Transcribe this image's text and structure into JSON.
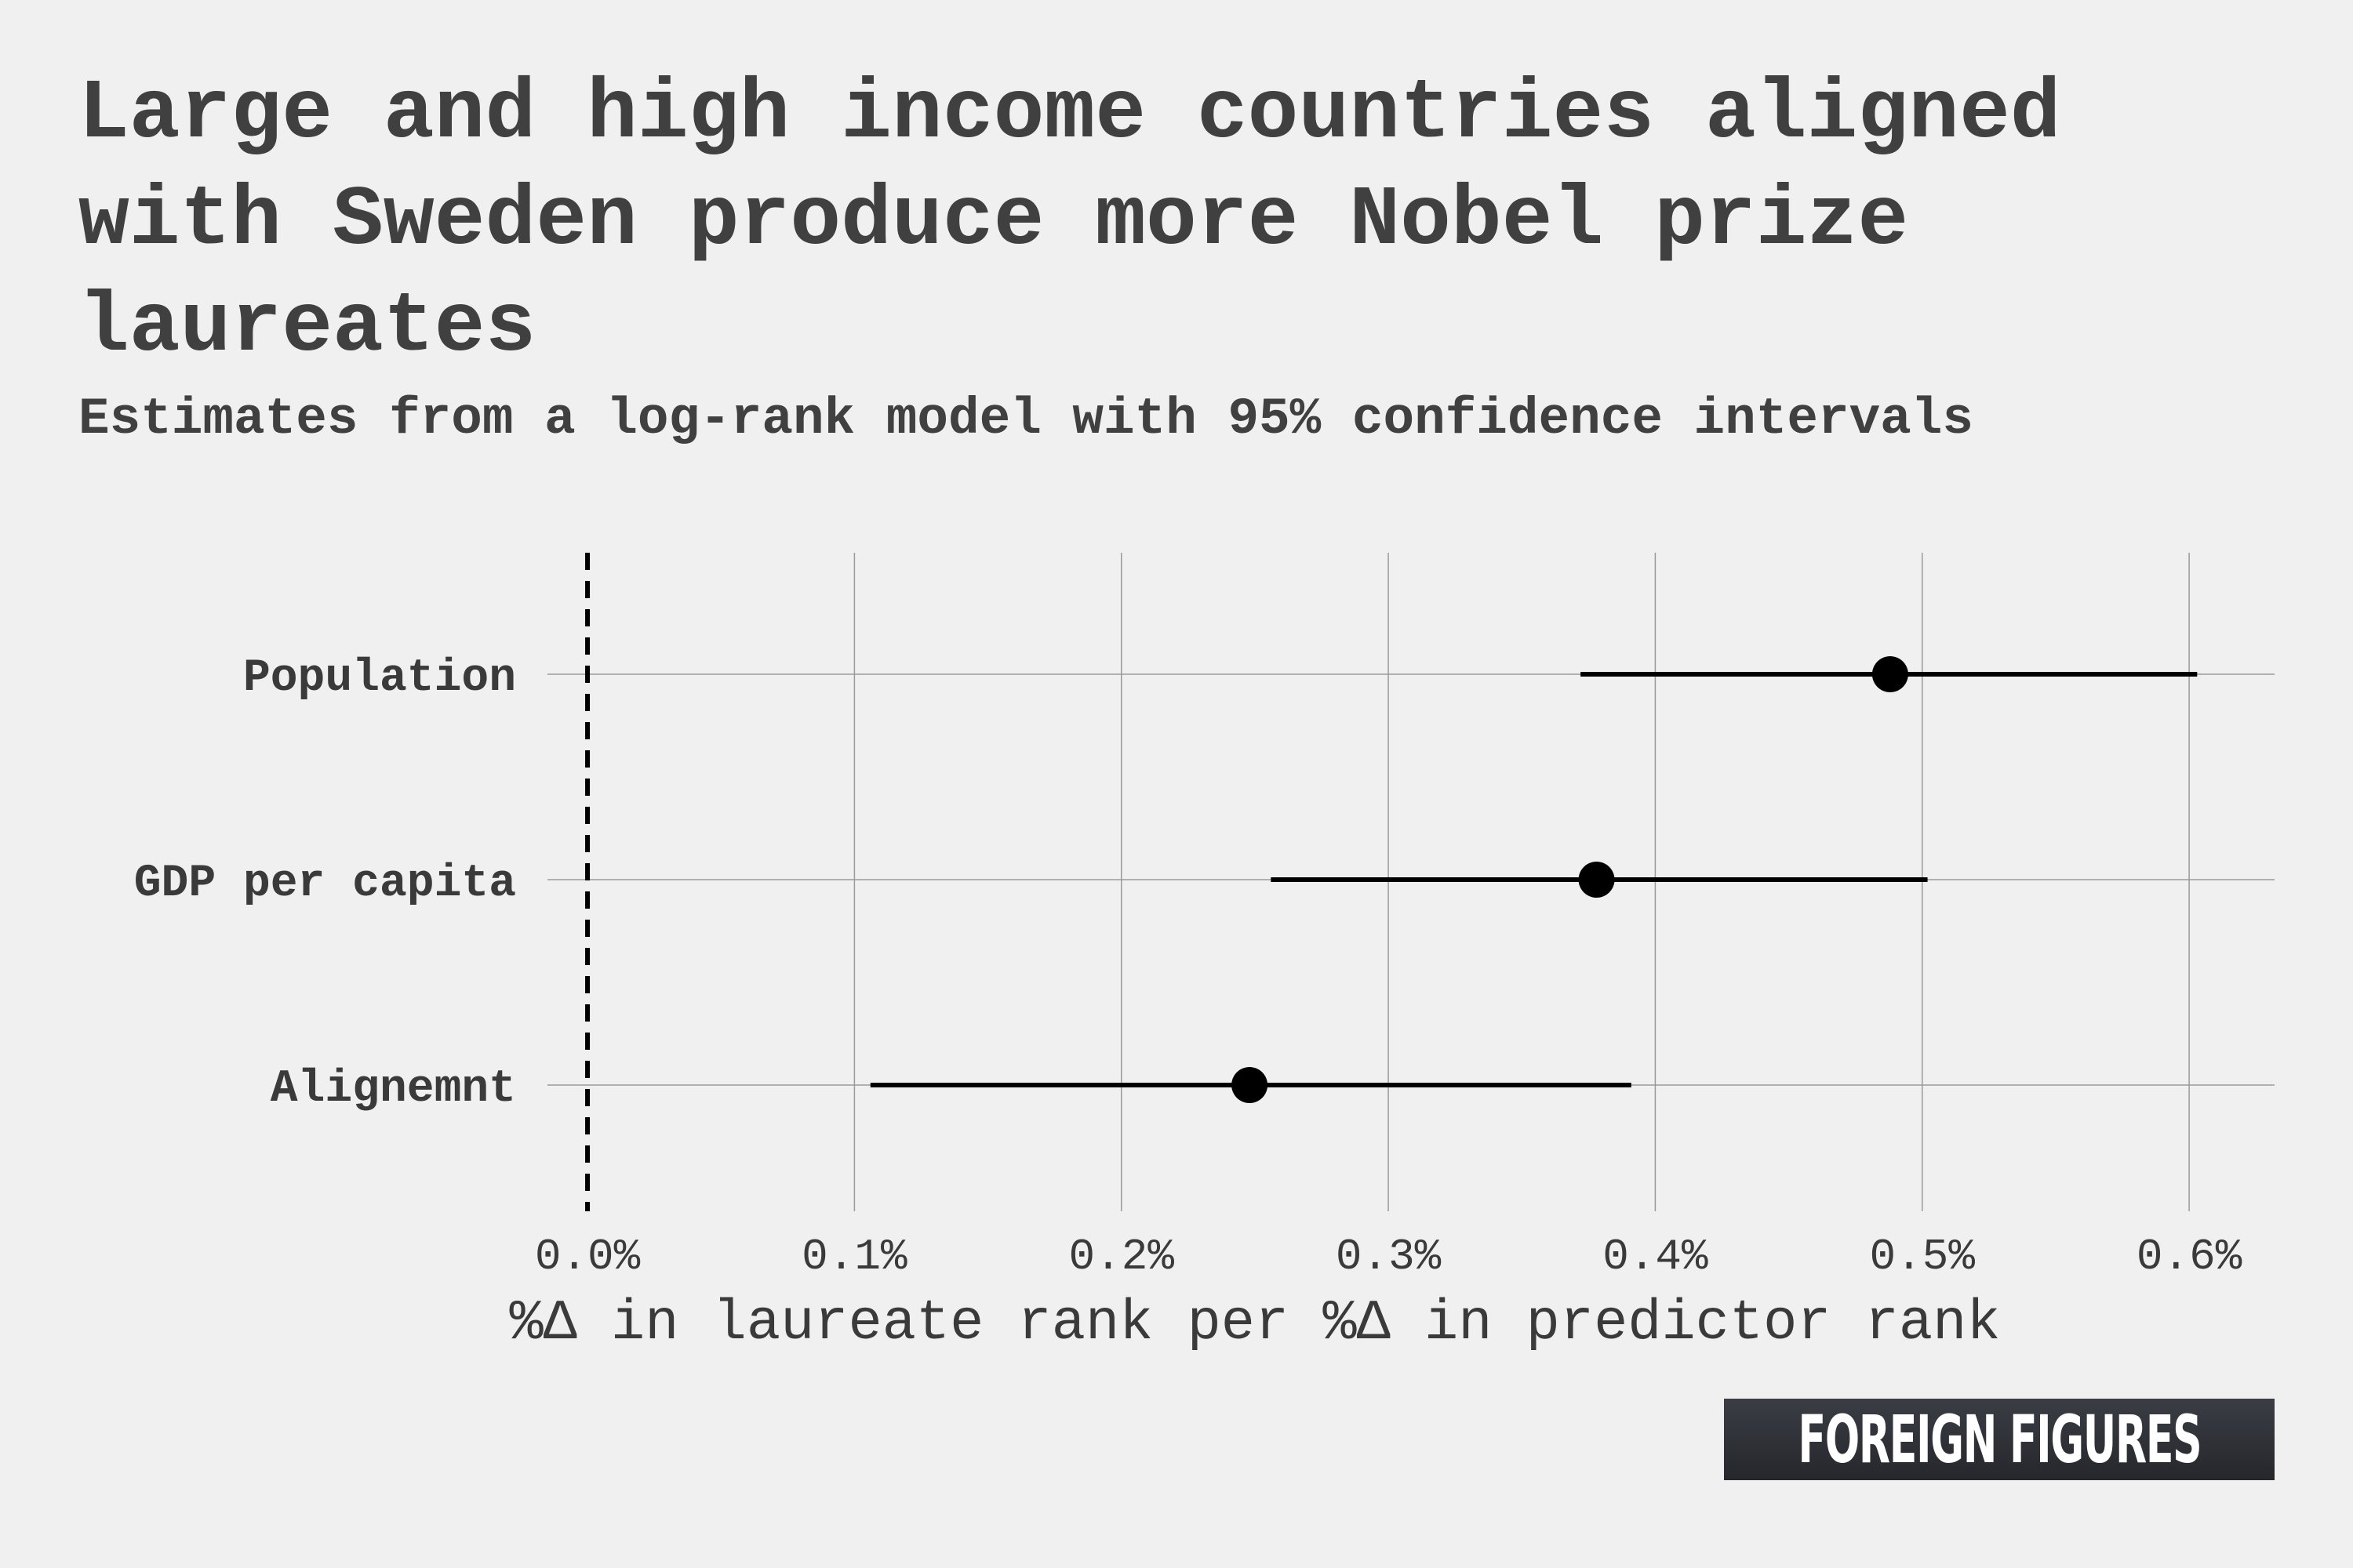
{
  "chart_data": {
    "type": "scatter",
    "title": "Large and high income countries aligned with Sweden produce more Nobel prize laureates",
    "subtitle": "Estimates from a log-rank model with 95% confidence intervals",
    "xlabel": "%Δ in laureate rank per %Δ in predictor rank",
    "ylabel": "",
    "xlim": [
      -0.015,
      0.632
    ],
    "xticks": [
      0.0,
      0.1,
      0.2,
      0.3,
      0.4,
      0.5,
      0.6
    ],
    "xtick_labels": [
      "0.0%",
      "0.1%",
      "0.2%",
      "0.3%",
      "0.4%",
      "0.5%",
      "0.6%"
    ],
    "reference_line": 0.0,
    "grid": true,
    "legend": "none",
    "series": [
      {
        "points": [
          {
            "category": "Population",
            "estimate": 0.488,
            "lower": 0.372,
            "upper": 0.603
          },
          {
            "category": "GDP per capita",
            "estimate": 0.378,
            "lower": 0.256,
            "upper": 0.502
          },
          {
            "category": "Alignemnt",
            "estimate": 0.248,
            "lower": 0.106,
            "upper": 0.391
          }
        ]
      }
    ],
    "colors": {
      "point": "#000000",
      "interval": "#000000",
      "grid": "#9a9a9a",
      "text": "#3a3a3a"
    }
  },
  "logo": {
    "text": "FOREIGN FIGURES"
  }
}
